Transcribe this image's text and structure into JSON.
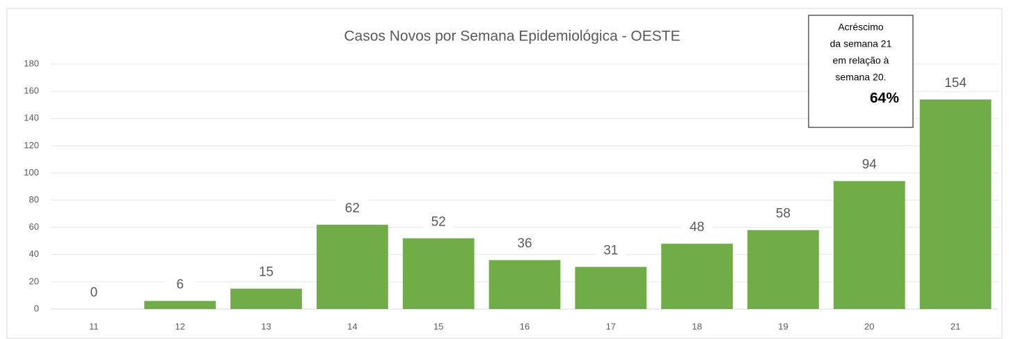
{
  "chart_data": {
    "type": "bar",
    "title": "Casos Novos por Semana Epidemiológica - OESTE",
    "categories": [
      "11",
      "12",
      "13",
      "14",
      "15",
      "16",
      "17",
      "18",
      "19",
      "20",
      "21"
    ],
    "values": [
      0,
      6,
      15,
      62,
      52,
      36,
      31,
      48,
      58,
      94,
      154
    ],
    "color": "#70ad47",
    "ylim": [
      0,
      180
    ],
    "yticks": [
      0,
      20,
      40,
      60,
      80,
      100,
      120,
      140,
      160,
      180
    ],
    "grid": true,
    "annotation": {
      "lines": [
        "Acréscimo",
        "da semana 21",
        "em relação à",
        "semana 20."
      ],
      "highlight": "64%"
    }
  }
}
